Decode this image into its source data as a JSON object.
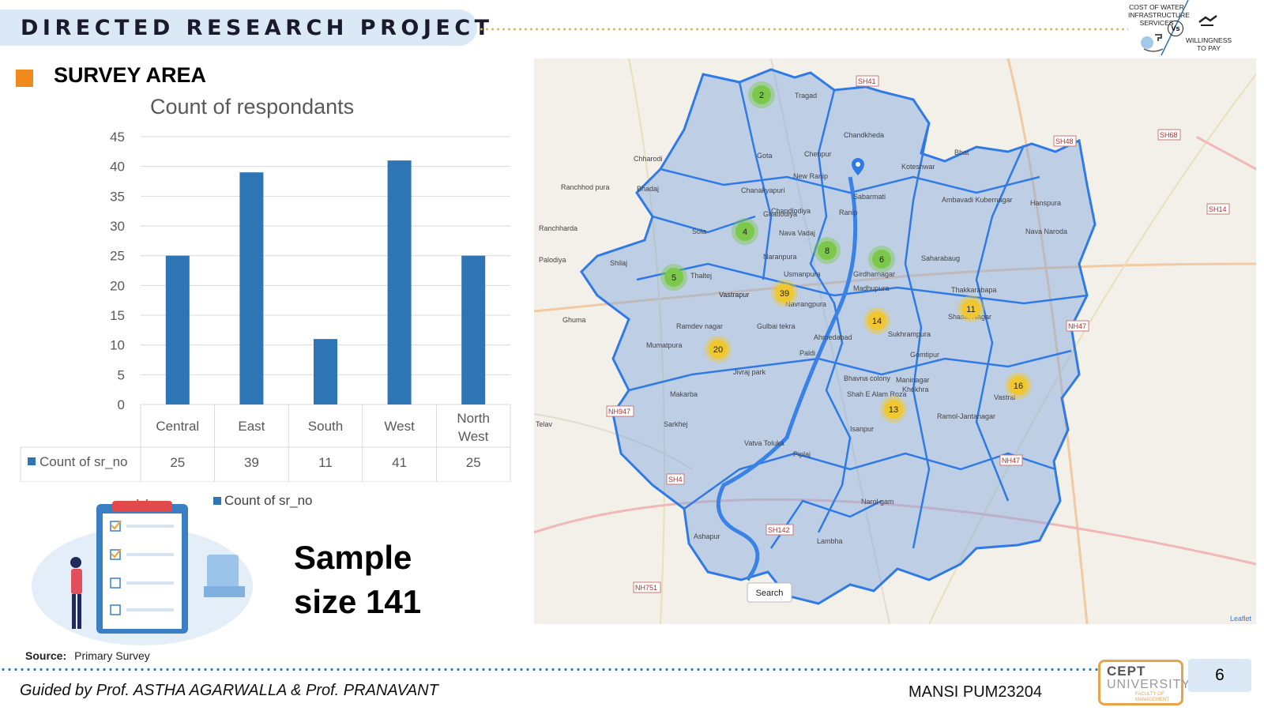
{
  "header": {
    "title": "DIRECTED RESEARCH PROJECT"
  },
  "logo": {
    "left_text": "COST OF WATER INFRASTRUCTURE SERVICES",
    "vs_text": "Vs",
    "right_text": "WILLINGNESS TO PAY"
  },
  "section": {
    "title": "SURVEY AREA",
    "marker_color": "#f08a1d"
  },
  "chart_data": {
    "type": "bar",
    "title": "Count of respondants",
    "categories": [
      "Central",
      "East",
      "South",
      "West",
      "North West"
    ],
    "series": [
      {
        "name": "Count of sr_no",
        "values": [
          25,
          39,
          11,
          41,
          25
        ],
        "color": "#2e75b6"
      }
    ],
    "ylim": [
      0,
      45
    ],
    "yticks": [
      0,
      5,
      10,
      15,
      20,
      25,
      30,
      35,
      40,
      45
    ],
    "grid": true,
    "data_table": true,
    "legend_position": "bottom"
  },
  "sample": {
    "line1": "Sample",
    "line2": "size 141"
  },
  "source": {
    "label": "Source:",
    "value": "Primary Survey"
  },
  "map": {
    "cluster_labels": [
      "2",
      "4",
      "8",
      "6",
      "5",
      "39",
      "14",
      "11",
      "20",
      "16",
      "13"
    ],
    "place_labels": [
      "Tragad",
      "Chandkheda",
      "Gota",
      "Chenpur",
      "New Ranip",
      "Chanakyapuri",
      "Ranip",
      "Sabarmati",
      "Koteshwar",
      "Bhat",
      "Chharodi",
      "Ranchhod pura",
      "Bhadaj",
      "Ranchharda",
      "Sola",
      "Naranpura",
      "Palodiya",
      "Shilaj",
      "Thaltej",
      "Vastrapur",
      "Gulbai tekra",
      "Ghuma",
      "Ramdev nagar",
      "Mumatpura",
      "Jivraj park",
      "Paldi",
      "Ahmedabad",
      "Makarba",
      "Sarkhej",
      "Telav",
      "Vatva Toluka",
      "Piplaj",
      "Isanpur",
      "Narol gam",
      "Ashapur",
      "Lambha",
      "Vastral",
      "Ramol-Jantanagar",
      "Thakkarabapa",
      "Shastri Nagar",
      "Hanspura",
      "Nava Naroda",
      "Ambavadi Kubernagar",
      "Saharabaug",
      "Girdharnagar",
      "Madhupura",
      "Sukhrampura",
      "Gomtipur",
      "Maninagar",
      "Khokhra",
      "Shah E Alam Roza",
      "Bhavna colony",
      "Usmanpura",
      "Navrangpura",
      "Nava Vadaj",
      "Vastrapur",
      "Ghatlodiya",
      "Chandlodiya"
    ],
    "road_labels": [
      "SH41",
      "SH68",
      "SH48",
      "SH14",
      "NH47",
      "NH947",
      "SH4",
      "SH142",
      "NH751",
      "NH47"
    ],
    "search_label": "Search",
    "attribution": "Leaflet"
  },
  "footer": {
    "guided": "Guided by Prof. ASTHA AGARWALLA  & Prof. PRANAVANT",
    "author": "MANSI  PUM23204",
    "university_l1": "CEPT",
    "university_l2": "UNIVERSITY",
    "university_l3": "FACULTY OF MANAGEMENT",
    "page": "6"
  }
}
